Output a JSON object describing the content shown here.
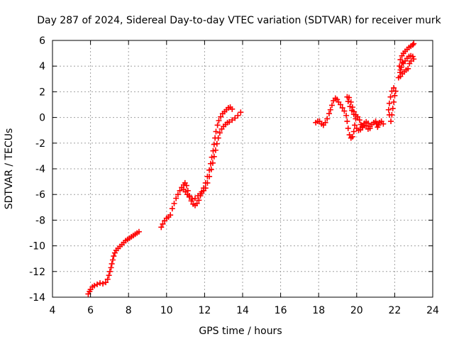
{
  "chart_data": {
    "type": "scatter",
    "title": "Day 287 of 2024, Sidereal Day-to-day VTEC variation (SDTVAR) for receiver murk",
    "xlabel": "GPS time / hours",
    "ylabel": "SDTVAR / TECUs",
    "xlim": [
      4,
      24
    ],
    "ylim": [
      -14,
      6
    ],
    "xticks": [
      "4",
      "6",
      "8",
      "10",
      "12",
      "14",
      "16",
      "18",
      "20",
      "22",
      "24"
    ],
    "yticks": [
      "6",
      "4",
      "2",
      "0",
      "-2",
      "-4",
      "-6",
      "-8",
      "-10",
      "-12",
      "-14"
    ],
    "grid": true,
    "marker": "+",
    "marker_color": "#ff0000",
    "series": [
      {
        "name": "SDTVAR",
        "points": [
          [
            5.88,
            -13.75
          ],
          [
            5.95,
            -13.55
          ],
          [
            6.0,
            -13.4
          ],
          [
            6.1,
            -13.2
          ],
          [
            6.2,
            -13.1
          ],
          [
            6.35,
            -13.0
          ],
          [
            6.5,
            -12.9
          ],
          [
            6.65,
            -12.95
          ],
          [
            6.8,
            -12.85
          ],
          [
            6.9,
            -12.6
          ],
          [
            6.97,
            -12.3
          ],
          [
            7.02,
            -12.0
          ],
          [
            7.08,
            -11.7
          ],
          [
            7.12,
            -11.4
          ],
          [
            7.17,
            -11.1
          ],
          [
            7.22,
            -10.8
          ],
          [
            7.28,
            -10.55
          ],
          [
            7.35,
            -10.35
          ],
          [
            7.45,
            -10.2
          ],
          [
            7.55,
            -10.05
          ],
          [
            7.65,
            -9.9
          ],
          [
            7.75,
            -9.75
          ],
          [
            7.85,
            -9.6
          ],
          [
            7.95,
            -9.5
          ],
          [
            8.05,
            -9.4
          ],
          [
            8.15,
            -9.3
          ],
          [
            8.25,
            -9.2
          ],
          [
            8.35,
            -9.1
          ],
          [
            8.45,
            -9.0
          ],
          [
            8.55,
            -8.9
          ],
          [
            9.72,
            -8.55
          ],
          [
            9.8,
            -8.3
          ],
          [
            9.9,
            -8.05
          ],
          [
            10.0,
            -7.85
          ],
          [
            10.1,
            -7.75
          ],
          [
            10.2,
            -7.6
          ],
          [
            10.3,
            -7.1
          ],
          [
            10.4,
            -6.7
          ],
          [
            10.5,
            -6.3
          ],
          [
            10.6,
            -6.0
          ],
          [
            10.7,
            -5.7
          ],
          [
            10.8,
            -5.45
          ],
          [
            10.9,
            -5.25
          ],
          [
            10.97,
            -5.1
          ],
          [
            11.05,
            -5.3
          ],
          [
            11.12,
            -5.7
          ],
          [
            11.2,
            -6.1
          ],
          [
            11.3,
            -6.5
          ],
          [
            11.4,
            -6.75
          ],
          [
            11.5,
            -6.85
          ],
          [
            11.6,
            -6.7
          ],
          [
            11.7,
            -6.45
          ],
          [
            11.78,
            -6.1
          ],
          [
            11.85,
            -5.8
          ],
          [
            11.95,
            -5.5
          ],
          [
            12.05,
            -5.1
          ],
          [
            12.15,
            -4.6
          ],
          [
            12.25,
            -4.1
          ],
          [
            12.32,
            -3.6
          ],
          [
            12.38,
            -3.1
          ],
          [
            12.45,
            -2.6
          ],
          [
            12.5,
            -2.1
          ],
          [
            12.55,
            -1.6
          ],
          [
            12.6,
            -1.1
          ],
          [
            12.68,
            -0.6
          ],
          [
            12.75,
            -0.25
          ],
          [
            12.85,
            0.05
          ],
          [
            12.95,
            0.3
          ],
          [
            13.05,
            0.45
          ],
          [
            13.15,
            0.6
          ],
          [
            13.25,
            0.75
          ],
          [
            13.35,
            0.8
          ],
          [
            13.45,
            0.65
          ],
          [
            10.9,
            -5.6
          ],
          [
            11.0,
            -5.8
          ],
          [
            11.1,
            -6.0
          ],
          [
            11.2,
            -6.2
          ],
          [
            11.35,
            -6.35
          ],
          [
            11.5,
            -6.3
          ],
          [
            11.65,
            -6.1
          ],
          [
            11.8,
            -5.95
          ],
          [
            11.95,
            -5.7
          ],
          [
            12.05,
            -5.5
          ],
          [
            12.15,
            -5.1
          ],
          [
            12.25,
            -4.6
          ],
          [
            12.35,
            -4.05
          ],
          [
            12.43,
            -3.55
          ],
          [
            12.5,
            -3.05
          ],
          [
            12.58,
            -2.55
          ],
          [
            12.65,
            -2.05
          ],
          [
            12.72,
            -1.6
          ],
          [
            12.8,
            -1.2
          ],
          [
            12.9,
            -0.9
          ],
          [
            13.0,
            -0.7
          ],
          [
            13.1,
            -0.55
          ],
          [
            13.2,
            -0.4
          ],
          [
            13.3,
            -0.35
          ],
          [
            13.45,
            -0.2
          ],
          [
            13.6,
            -0.05
          ],
          [
            13.75,
            0.15
          ],
          [
            13.9,
            0.4
          ],
          [
            17.85,
            -0.4
          ],
          [
            17.95,
            -0.3
          ],
          [
            18.05,
            -0.3
          ],
          [
            18.15,
            -0.5
          ],
          [
            18.25,
            -0.6
          ],
          [
            18.35,
            -0.4
          ],
          [
            18.45,
            -0.1
          ],
          [
            18.55,
            0.3
          ],
          [
            18.62,
            0.6
          ],
          [
            18.7,
            0.95
          ],
          [
            18.78,
            1.3
          ],
          [
            18.88,
            1.5
          ],
          [
            18.97,
            1.4
          ],
          [
            19.05,
            1.2
          ],
          [
            19.15,
            1.0
          ],
          [
            19.25,
            0.75
          ],
          [
            19.35,
            0.5
          ],
          [
            19.45,
            0.15
          ],
          [
            19.5,
            -0.3
          ],
          [
            19.55,
            -0.85
          ],
          [
            19.62,
            -1.35
          ],
          [
            19.7,
            -1.6
          ],
          [
            19.78,
            -1.5
          ],
          [
            19.85,
            -1.1
          ],
          [
            19.9,
            -0.6
          ],
          [
            19.95,
            -0.1
          ],
          [
            19.85,
            0.25
          ],
          [
            19.75,
            0.55
          ],
          [
            19.65,
            0.85
          ],
          [
            19.55,
            1.25
          ],
          [
            19.5,
            1.6
          ],
          [
            19.6,
            1.55
          ],
          [
            19.7,
            1.2
          ],
          [
            19.78,
            0.8
          ],
          [
            19.85,
            0.45
          ],
          [
            19.95,
            0.2
          ],
          [
            20.05,
            0.05
          ],
          [
            20.15,
            -0.2
          ],
          [
            20.22,
            -0.55
          ],
          [
            20.3,
            -0.8
          ],
          [
            20.4,
            -0.6
          ],
          [
            20.5,
            -0.35
          ],
          [
            20.6,
            -0.45
          ],
          [
            20.7,
            -0.7
          ],
          [
            20.8,
            -0.55
          ],
          [
            20.9,
            -0.4
          ],
          [
            21.0,
            -0.3
          ],
          [
            21.05,
            -0.5
          ],
          [
            21.1,
            -0.75
          ],
          [
            21.15,
            -0.6
          ],
          [
            21.2,
            -0.4
          ],
          [
            21.3,
            -0.3
          ],
          [
            21.4,
            -0.5
          ],
          [
            20.0,
            -0.85
          ],
          [
            20.1,
            -1.0
          ],
          [
            20.2,
            -0.95
          ],
          [
            20.3,
            -0.7
          ],
          [
            20.4,
            -0.45
          ],
          [
            20.5,
            -0.65
          ],
          [
            20.6,
            -0.9
          ],
          [
            20.7,
            -0.85
          ],
          [
            21.8,
            -0.3
          ],
          [
            21.85,
            0.2
          ],
          [
            21.9,
            0.7
          ],
          [
            21.95,
            1.2
          ],
          [
            22.0,
            1.7
          ],
          [
            22.05,
            2.05
          ],
          [
            21.95,
            2.3
          ],
          [
            21.85,
            2.05
          ],
          [
            21.78,
            1.6
          ],
          [
            21.72,
            1.1
          ],
          [
            21.68,
            0.6
          ],
          [
            21.72,
            0.2
          ],
          [
            22.2,
            3.1
          ],
          [
            22.28,
            3.5
          ],
          [
            22.35,
            3.9
          ],
          [
            22.45,
            4.2
          ],
          [
            22.55,
            4.4
          ],
          [
            22.65,
            4.6
          ],
          [
            22.75,
            4.75
          ],
          [
            22.85,
            4.8
          ],
          [
            22.95,
            4.75
          ],
          [
            23.0,
            4.55
          ],
          [
            22.3,
            3.2
          ],
          [
            22.4,
            3.4
          ],
          [
            22.5,
            3.55
          ],
          [
            22.6,
            3.7
          ],
          [
            22.7,
            3.8
          ],
          [
            22.78,
            4.2
          ],
          [
            22.86,
            4.4
          ],
          [
            22.3,
            4.5
          ],
          [
            22.38,
            4.8
          ],
          [
            22.46,
            5.0
          ],
          [
            22.55,
            5.15
          ],
          [
            22.65,
            5.3
          ],
          [
            22.75,
            5.45
          ],
          [
            22.85,
            5.55
          ],
          [
            22.95,
            5.65
          ],
          [
            23.0,
            5.75
          ],
          [
            22.4,
            4.3
          ],
          [
            22.25,
            4.0
          ],
          [
            22.3,
            3.7
          ]
        ]
      }
    ]
  }
}
